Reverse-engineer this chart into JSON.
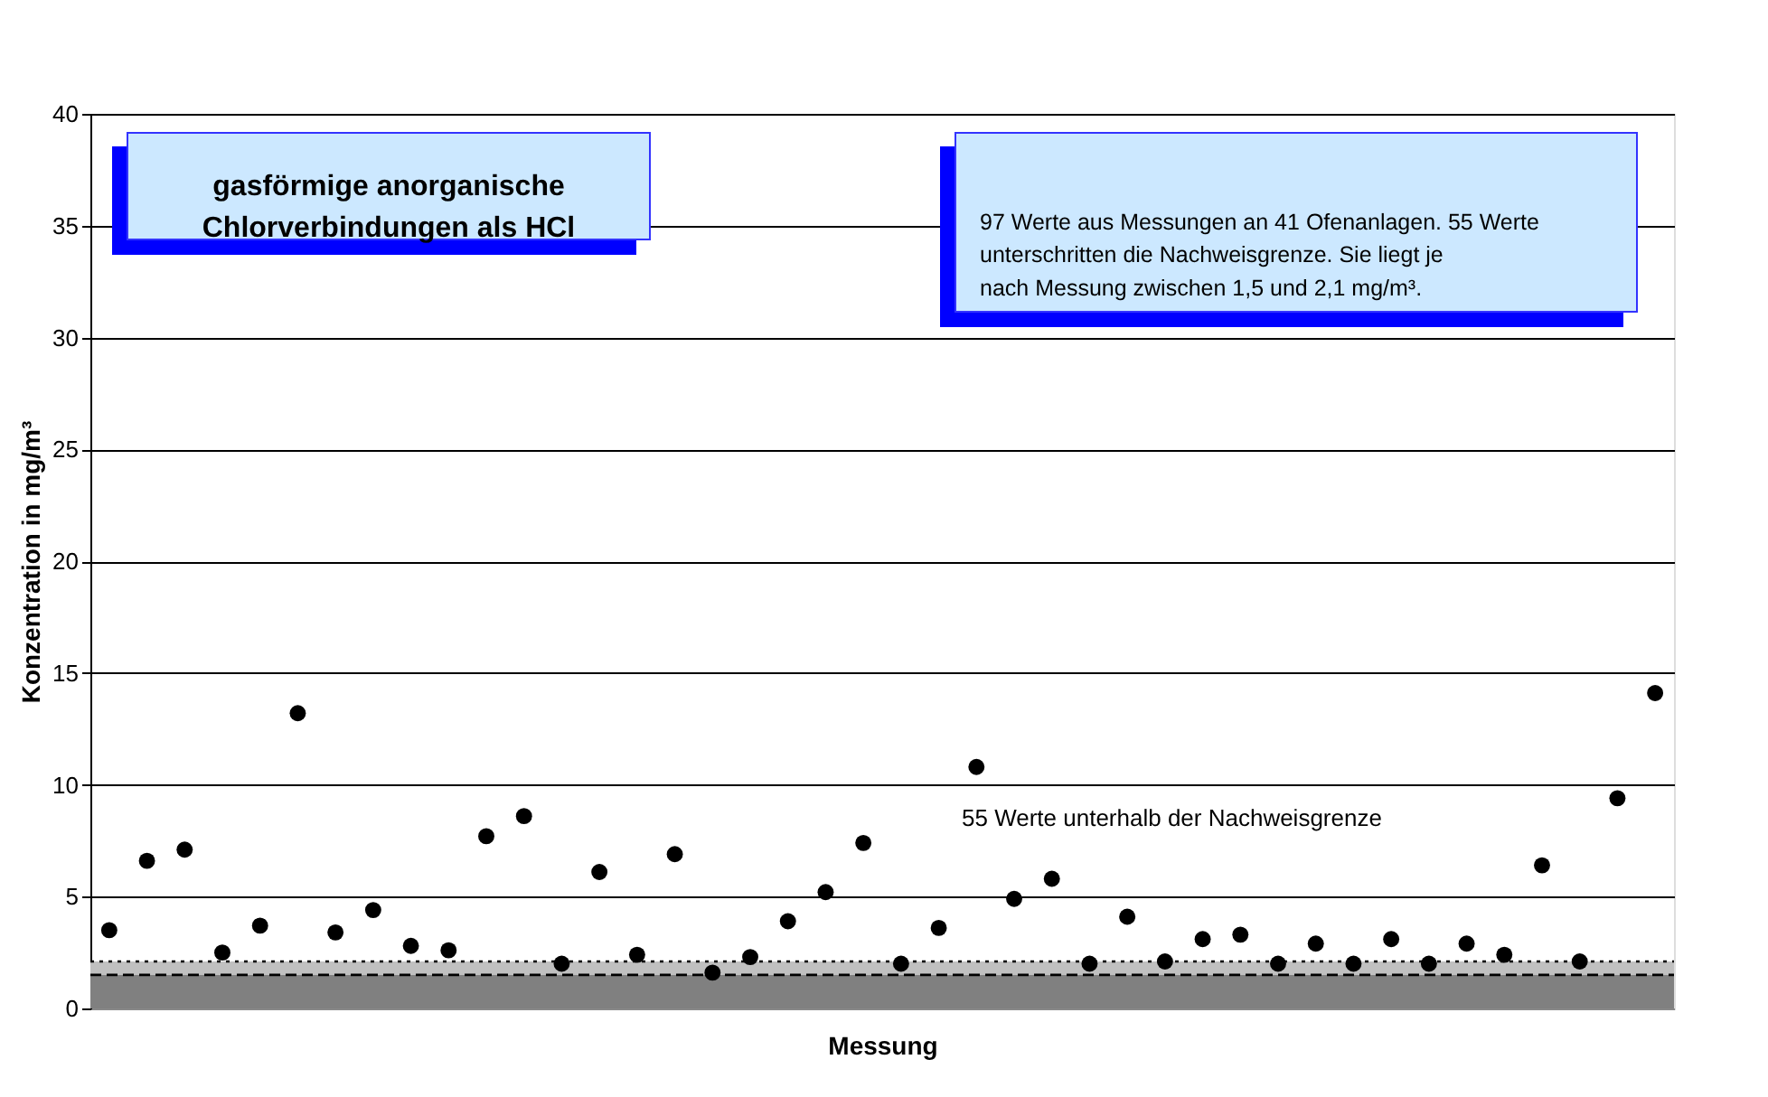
{
  "chart_data": {
    "type": "scatter",
    "title": "gasförmige anorganische Chlorverbindungen als HCl",
    "xlabel": "Messung",
    "ylabel": "Konzentration in mg/m³",
    "categories": [
      null,
      null,
      null,
      null,
      null,
      null,
      null,
      null,
      null,
      null,
      null,
      null,
      null,
      null,
      null,
      null,
      null,
      null,
      null,
      null,
      null,
      null,
      null,
      null,
      null,
      null,
      null,
      null,
      null,
      null,
      null,
      null,
      null,
      null,
      null,
      null,
      null,
      null,
      null,
      null,
      null,
      null
    ],
    "series": [
      {
        "color": "#000000",
        "values": [
          3.5,
          6.6,
          7.1,
          2.5,
          3.7,
          13.2,
          3.4,
          4.4,
          2.8,
          2.6,
          7.7,
          8.6,
          2.0,
          6.1,
          2.4,
          6.9,
          1.6,
          2.3,
          3.9,
          5.2,
          7.4,
          2.0,
          3.6,
          10.8,
          4.9,
          5.8,
          2.0,
          4.1,
          2.1,
          3.1,
          3.3,
          2.0,
          2.9,
          2.0,
          3.1,
          2.0,
          2.9,
          2.4,
          6.4,
          2.1,
          9.4,
          14.1
        ]
      }
    ],
    "ylim": [
      0,
      40
    ],
    "yticks": [
      0,
      5,
      10,
      15,
      20,
      25,
      30,
      35,
      40
    ],
    "grid": "y",
    "legend": false,
    "marker": "circle",
    "bands": [
      {
        "axis": "y",
        "from": 0,
        "to": 1.5,
        "color": "#808080"
      },
      {
        "axis": "y",
        "from": 1.5,
        "to": 2.1,
        "color": "#c0c0c0"
      }
    ],
    "ref_lines": [
      {
        "axis": "y",
        "value": 1.5,
        "color": "#000000",
        "line_style": "dashed"
      },
      {
        "axis": "y",
        "value": 2.1,
        "color": "#000000",
        "line_style": "dotted"
      }
    ],
    "annotations": [
      "97 Werte aus Messungen an 41 Ofenanlagen. 55 Werte unterschritten die Nachweisgrenze. Sie liegt je nach Messung zwischen 1,5 und 2,1 mg/m³.",
      "55 Werte unterhalb der Nachweisgrenze"
    ]
  }
}
